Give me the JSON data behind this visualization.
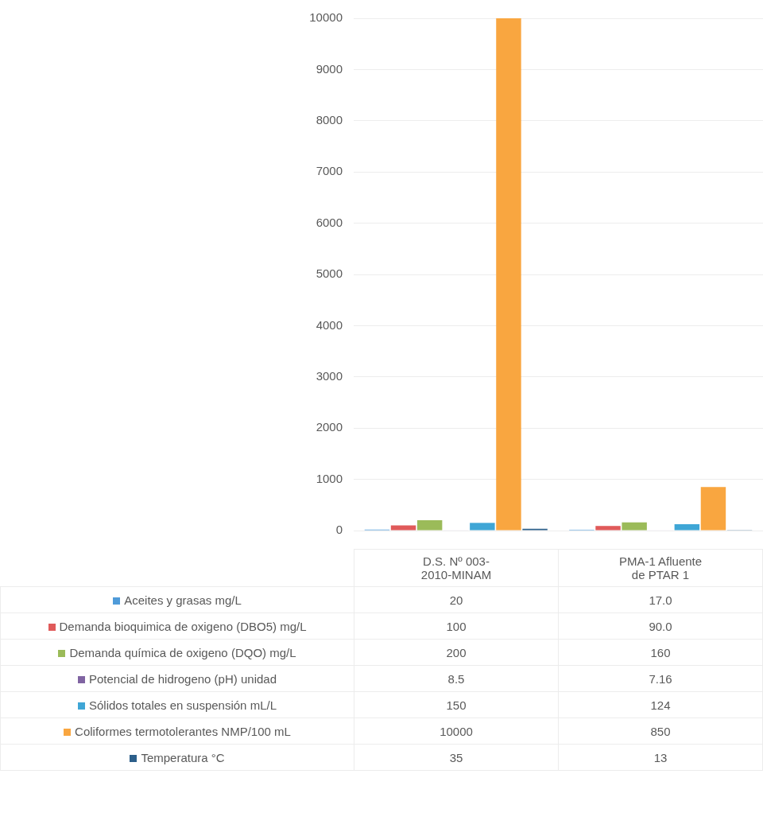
{
  "chart_data": {
    "type": "bar",
    "categories": [
      "D.S. Nº 003-2010-MINAM",
      "PMA-1 Afluente de PTAR 1"
    ],
    "series": [
      {
        "name": "Aceites y grasas mg/L",
        "color": "#4f9bd9",
        "values": [
          20,
          17
        ],
        "value_labels": [
          "20",
          "17.0"
        ]
      },
      {
        "name": "Demanda bioquimica de oxigeno (DBO5) mg/L",
        "color": "#e05a5a",
        "values": [
          100,
          90
        ],
        "value_labels": [
          "100",
          "90.0"
        ]
      },
      {
        "name": "Demanda química de oxigeno (DQO) mg/L",
        "color": "#9bbb59",
        "values": [
          200,
          160
        ],
        "value_labels": [
          "200",
          "160"
        ]
      },
      {
        "name": "Potencial de hidrogeno (pH)  unidad",
        "color": "#8064a2",
        "values": [
          8.5,
          7.16
        ],
        "value_labels": [
          "8.5",
          "7.16"
        ]
      },
      {
        "name": "Sólidos totales en suspensión mL/L",
        "color": "#3fa6d6",
        "values": [
          150,
          124
        ],
        "value_labels": [
          "150",
          "124"
        ]
      },
      {
        "name": "Coliformes termotolerantes NMP/100 mL",
        "color": "#f9a640",
        "values": [
          10000,
          850
        ],
        "value_labels": [
          "10000",
          "850"
        ]
      },
      {
        "name": "Temperatura °C",
        "color": "#2c5f8a",
        "values": [
          35,
          13
        ],
        "value_labels": [
          "35",
          "13"
        ]
      }
    ],
    "ylim": [
      0,
      10000
    ],
    "yticks": [
      0,
      1000,
      2000,
      3000,
      4000,
      5000,
      6000,
      7000,
      8000,
      9000,
      10000
    ],
    "grid": "y",
    "legend": "bottom"
  }
}
